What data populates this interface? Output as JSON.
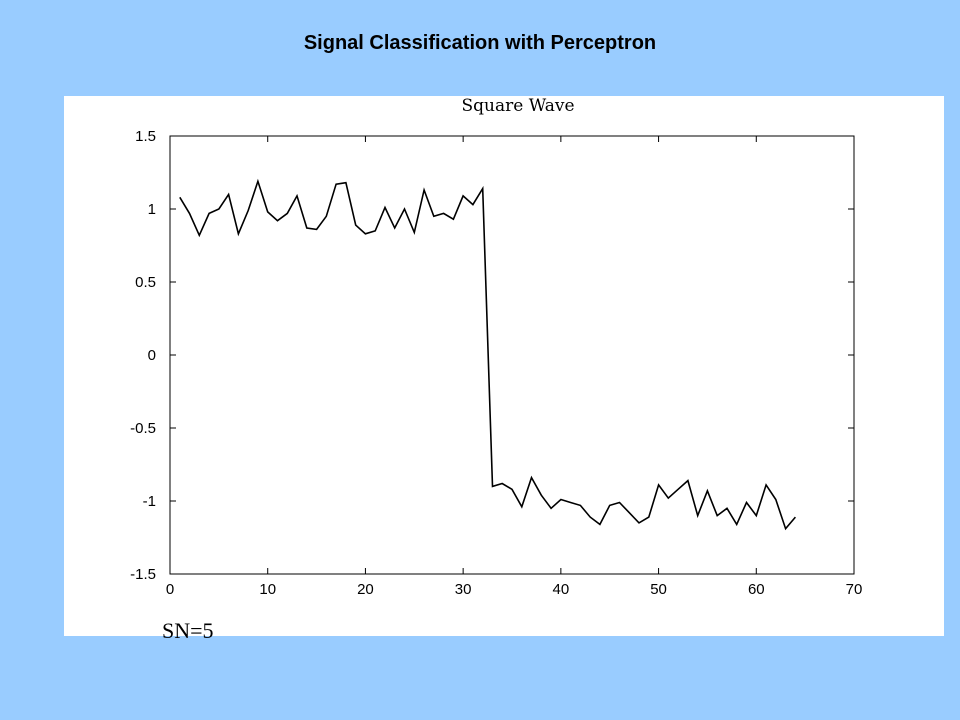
{
  "slide": {
    "title": "Signal Classification with Perceptron",
    "background_color": "#99ccff"
  },
  "caption": "SN=5",
  "chart_data": {
    "type": "line",
    "title": "Square Wave",
    "xlabel": "",
    "ylabel": "",
    "xlim": [
      0,
      70
    ],
    "ylim": [
      -1.5,
      1.5
    ],
    "xticks": [
      0,
      10,
      20,
      30,
      40,
      50,
      60,
      70
    ],
    "yticks": [
      1.5,
      1,
      0.5,
      0,
      -0.5,
      -1,
      -1.5
    ],
    "xtick_labels": [
      "0",
      "10",
      "20",
      "30",
      "40",
      "50",
      "60",
      "70"
    ],
    "ytick_labels": [
      "1.5",
      "1",
      "0.5",
      "0",
      "-0.5",
      "-1",
      "-1.5"
    ],
    "grid": false,
    "line_color": "#000000",
    "series": [
      {
        "x": [
          1,
          2,
          3,
          4,
          5,
          6,
          7,
          8,
          9,
          10,
          11,
          12,
          13,
          14,
          15,
          16,
          17,
          18,
          19,
          20,
          21,
          22,
          23,
          24,
          25,
          26,
          27,
          28,
          29,
          30,
          31,
          32,
          33,
          34,
          35,
          36,
          37,
          38,
          39,
          40,
          41,
          42,
          43,
          44,
          45,
          46,
          47,
          48,
          49,
          50,
          51,
          52,
          53,
          54,
          55,
          56,
          57,
          58,
          59,
          60,
          61,
          62,
          63,
          64
        ],
        "values": [
          1.08,
          0.97,
          0.82,
          0.97,
          1.0,
          1.1,
          0.83,
          0.99,
          1.19,
          0.98,
          0.92,
          0.97,
          1.09,
          0.87,
          0.86,
          0.95,
          1.17,
          1.18,
          0.89,
          0.83,
          0.85,
          1.01,
          0.87,
          1.0,
          0.84,
          1.13,
          0.95,
          0.97,
          0.93,
          1.09,
          1.03,
          1.14,
          -0.9,
          -0.88,
          -0.92,
          -1.04,
          -0.84,
          -0.96,
          -1.05,
          -0.99,
          -1.01,
          -1.03,
          -1.11,
          -1.16,
          -1.03,
          -1.01,
          -1.08,
          -1.15,
          -1.11,
          -0.89,
          -0.98,
          -0.92,
          -0.86,
          -1.1,
          -0.93,
          -1.1,
          -1.05,
          -1.16,
          -1.01,
          -1.1,
          -0.89,
          -0.99,
          -1.19,
          -1.11
        ]
      }
    ]
  }
}
